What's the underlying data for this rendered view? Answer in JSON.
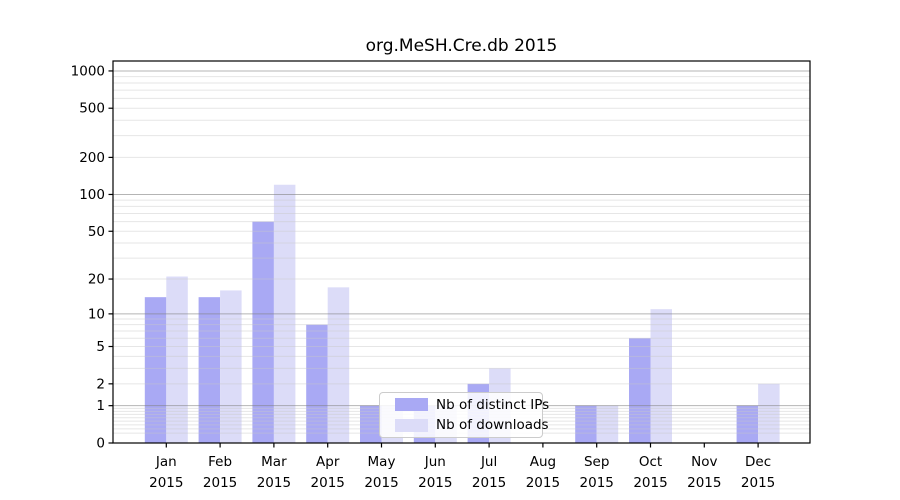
{
  "chart_data": {
    "type": "bar",
    "title": "org.MeSH.Cre.db 2015",
    "xlabel": "",
    "ylabel": "",
    "year_label": "2015",
    "categories": [
      "Jan",
      "Feb",
      "Mar",
      "Apr",
      "May",
      "Jun",
      "Jul",
      "Aug",
      "Sep",
      "Oct",
      "Nov",
      "Dec"
    ],
    "series": [
      {
        "name": "Nb of distinct IPs",
        "color": "#a9a9f4",
        "values": [
          14,
          14,
          60,
          8,
          1,
          1,
          2,
          0,
          1,
          6,
          0,
          1
        ]
      },
      {
        "name": "Nb of downloads",
        "color": "#dcdcf8",
        "values": [
          21,
          16,
          120,
          17,
          1,
          1,
          3,
          0,
          1,
          11,
          0,
          2
        ]
      }
    ],
    "y_scale": "log1p",
    "y_ticks": [
      0,
      1,
      2,
      5,
      10,
      20,
      50,
      100,
      200,
      500,
      1000
    ],
    "ylim": [
      0,
      1200
    ],
    "grid": "horizontal; faint minor lines each decade step, darker lines at powers of 10",
    "legend_position": "bottom-center-left inside plot"
  }
}
